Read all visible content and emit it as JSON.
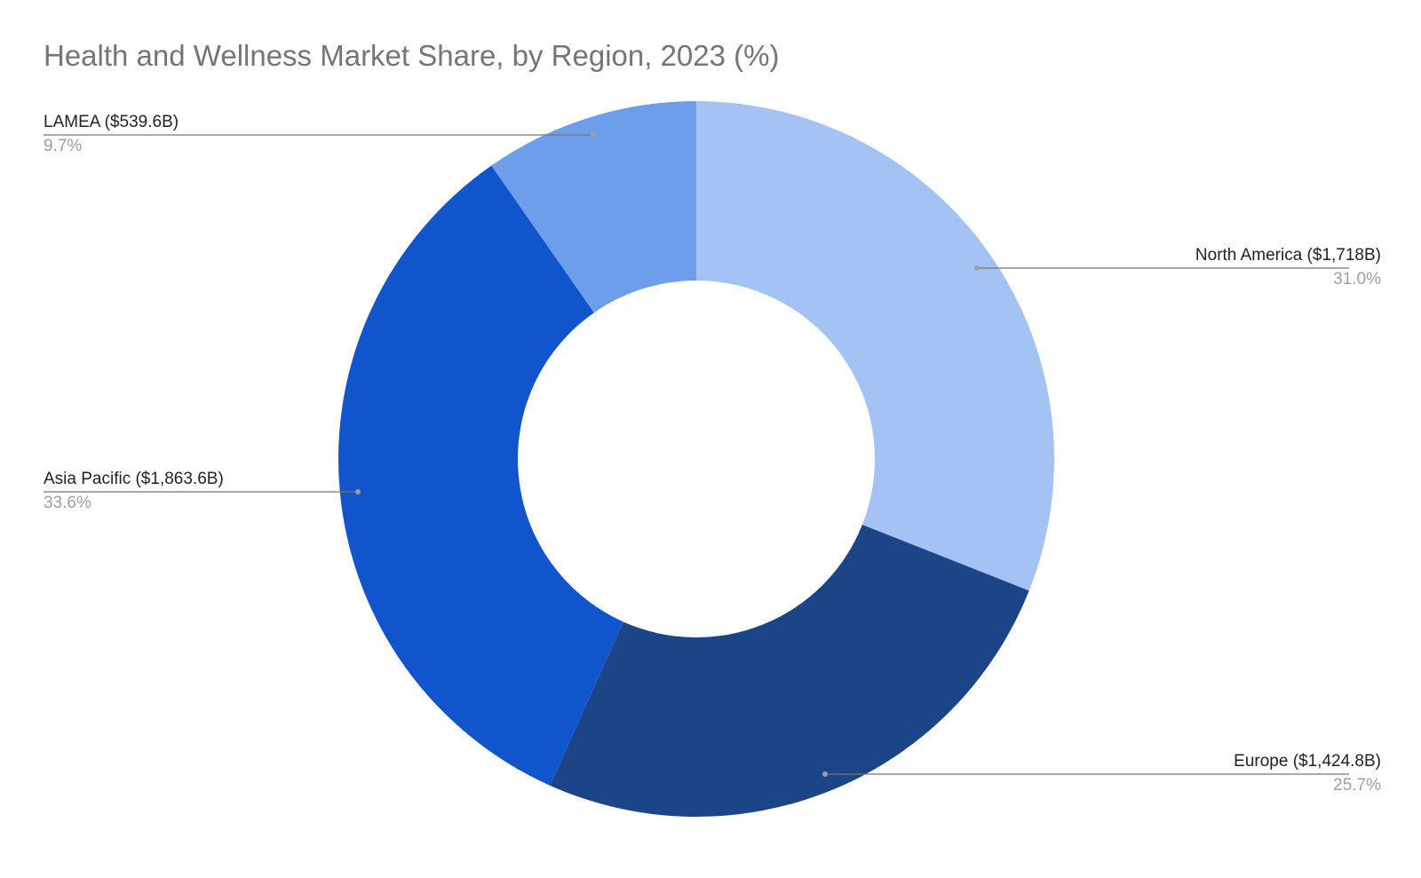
{
  "chart_data": {
    "type": "pie",
    "title": "Health and Wellness Market Share, by Region, 2023 (%)",
    "donut": true,
    "slices": [
      {
        "name": "North America",
        "label": "North America ($1,718B)",
        "value": 31.0,
        "value_label": "31.0%",
        "color": "#a4c2f4"
      },
      {
        "name": "Europe",
        "label": "Europe ($1,424.8B)",
        "value": 25.7,
        "value_label": "25.7%",
        "color": "#1c4587"
      },
      {
        "name": "Asia Pacific",
        "label": "Asia Pacific ($1,863.6B)",
        "value": 33.6,
        "value_label": "33.6%",
        "color": "#1155cc"
      },
      {
        "name": "LAMEA",
        "label": "LAMEA ($539.6B)",
        "value": 9.7,
        "value_label": "9.7%",
        "color": "#6d9eeb"
      }
    ],
    "legend": "none",
    "label_style": "callout"
  }
}
